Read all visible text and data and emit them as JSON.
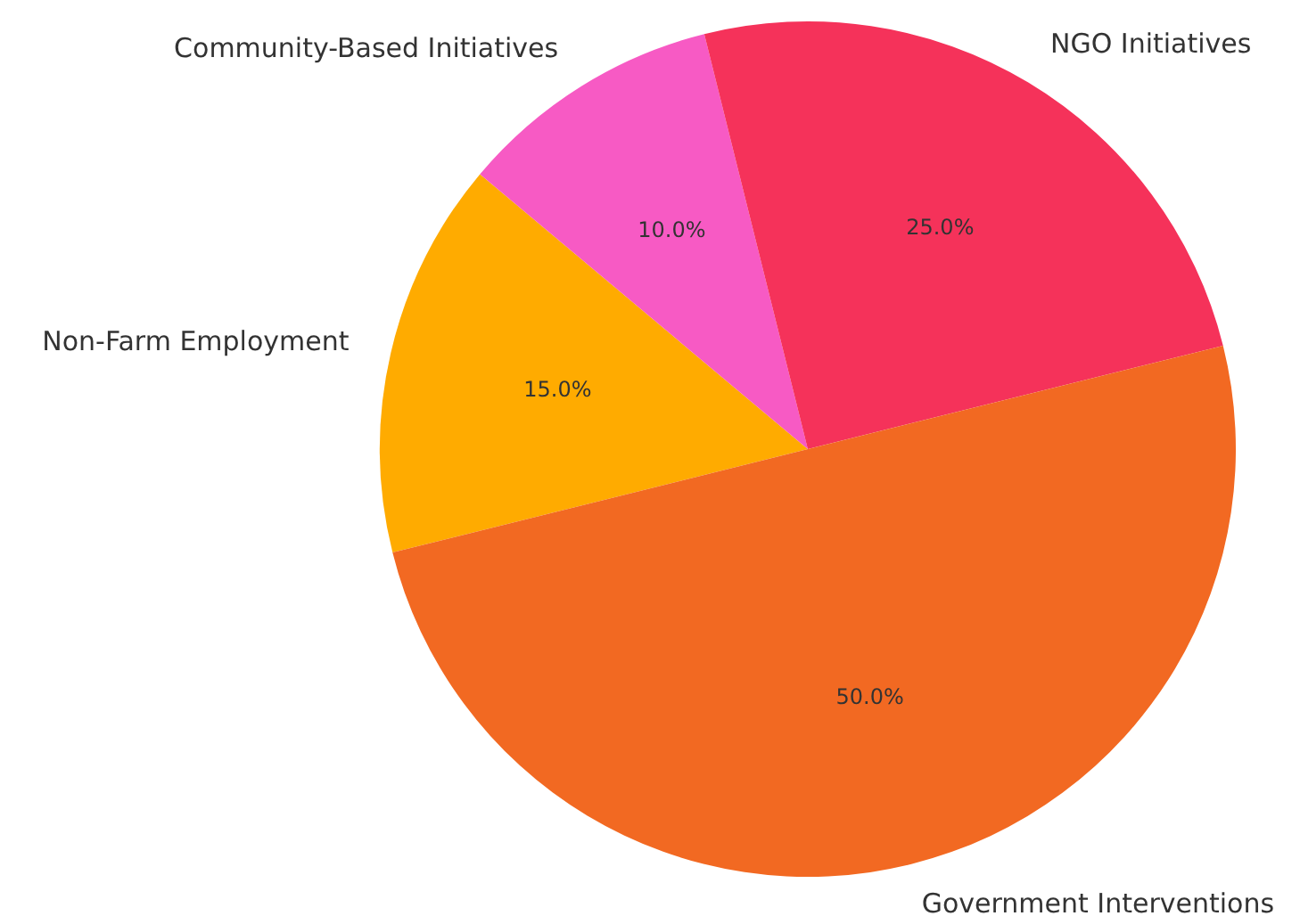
{
  "chart_data": {
    "type": "pie",
    "categories": [
      "Non-Farm Employment",
      "Community-Based Initiatives",
      "NGO Initiatives",
      "Government Interventions"
    ],
    "values": [
      15,
      10,
      25,
      50
    ],
    "colors": [
      "#ffab00",
      "#f75ac4",
      "#f5325a",
      "#f26922"
    ],
    "value_labels": [
      "15.0%",
      "10.0%",
      "25.0%",
      "50.0%"
    ],
    "legend": false
  }
}
